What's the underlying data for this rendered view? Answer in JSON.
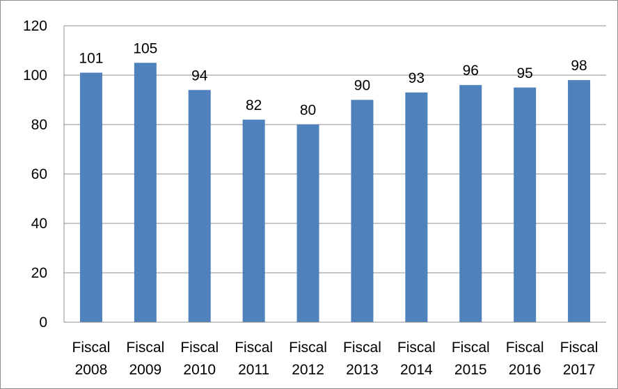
{
  "chart_data": {
    "type": "bar",
    "categories": [
      [
        "Fiscal",
        "2008"
      ],
      [
        "Fiscal",
        "2009"
      ],
      [
        "Fiscal",
        "2010"
      ],
      [
        "Fiscal",
        "2011"
      ],
      [
        "Fiscal",
        "2012"
      ],
      [
        "Fiscal",
        "2013"
      ],
      [
        "Fiscal",
        "2014"
      ],
      [
        "Fiscal",
        "2015"
      ],
      [
        "Fiscal",
        "2016"
      ],
      [
        "Fiscal",
        "2017"
      ]
    ],
    "values": [
      101,
      105,
      94,
      82,
      80,
      90,
      93,
      96,
      95,
      98
    ],
    "data_labels": [
      "101",
      "105",
      "94",
      "82",
      "80",
      "90",
      "93",
      "96",
      "95",
      "98"
    ],
    "y_ticks": [
      "0",
      "20",
      "40",
      "60",
      "80",
      "100",
      "120"
    ],
    "ylim": [
      0,
      120
    ],
    "grid": true,
    "legend": "none",
    "title": "",
    "xlabel": "",
    "ylabel": "",
    "colors": {
      "bar": "#4F81BD",
      "grid": "#8C8C8C",
      "border": "#8C8C8C",
      "text": "#000000"
    }
  }
}
